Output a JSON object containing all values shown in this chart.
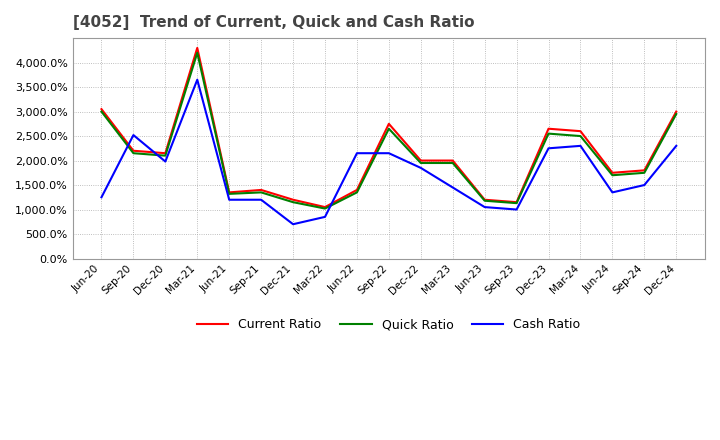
{
  "title": "[4052]  Trend of Current, Quick and Cash Ratio",
  "x_labels": [
    "Jun-20",
    "Sep-20",
    "Dec-20",
    "Mar-21",
    "Jun-21",
    "Sep-21",
    "Dec-21",
    "Mar-22",
    "Jun-22",
    "Sep-22",
    "Dec-22",
    "Mar-23",
    "Jun-23",
    "Sep-23",
    "Dec-23",
    "Mar-24",
    "Jun-24",
    "Sep-24",
    "Dec-24"
  ],
  "current_ratio": [
    3050,
    2200,
    2150,
    4300,
    1350,
    1400,
    1200,
    1050,
    1400,
    2750,
    2000,
    2000,
    1200,
    1150,
    2650,
    2600,
    1750,
    1800,
    3000
  ],
  "quick_ratio": [
    3000,
    2150,
    2100,
    4200,
    1320,
    1350,
    1150,
    1020,
    1350,
    2650,
    1950,
    1950,
    1180,
    1130,
    2550,
    2500,
    1700,
    1750,
    2950
  ],
  "cash_ratio": [
    1250,
    2520,
    1980,
    3650,
    1200,
    1200,
    700,
    850,
    2150,
    2150,
    1850,
    1450,
    1050,
    1000,
    2250,
    2300,
    1350,
    1500,
    2300
  ],
  "current_color": "#ff0000",
  "quick_color": "#008000",
  "cash_color": "#0000ff",
  "background_color": "#ffffff",
  "grid_color": "#aaaaaa",
  "ylim": [
    0,
    4500
  ],
  "yticks": [
    0,
    500,
    1000,
    1500,
    2000,
    2500,
    3000,
    3500,
    4000
  ]
}
